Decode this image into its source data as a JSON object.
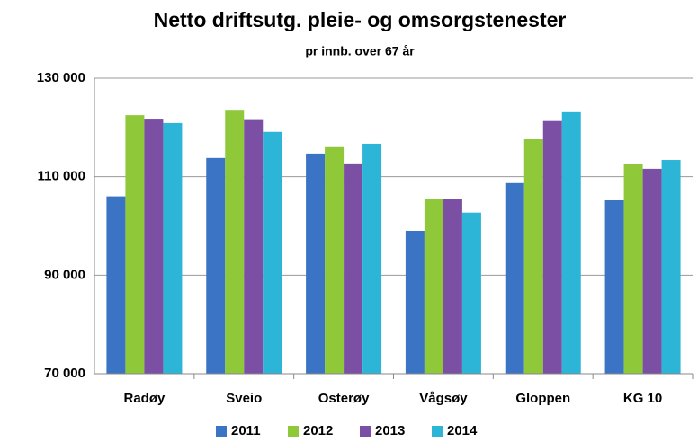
{
  "chart_data": {
    "type": "bar",
    "title": "Netto driftsutg. pleie- og omsorgstenester",
    "subtitle": "pr innb. over 67 år",
    "categories": [
      "Radøy",
      "Sveio",
      "Osterøy",
      "Vågsøy",
      "Gloppen",
      "KG 10"
    ],
    "series": [
      {
        "name": "2011",
        "color": "#3b74c4",
        "values": [
          106000,
          113800,
          114700,
          99000,
          108700,
          105200
        ]
      },
      {
        "name": "2012",
        "color": "#8fc93a",
        "values": [
          122500,
          123400,
          116000,
          105400,
          117600,
          112500
        ]
      },
      {
        "name": "2013",
        "color": "#7b4fa3",
        "values": [
          121600,
          121500,
          112700,
          105400,
          121300,
          111600
        ]
      },
      {
        "name": "2014",
        "color": "#2cb5d6",
        "values": [
          120900,
          119100,
          116700,
          102700,
          123100,
          113400
        ]
      }
    ],
    "ylim": [
      70000,
      130000
    ],
    "yticks": [
      {
        "value": 70000,
        "label": "70 000"
      },
      {
        "value": 90000,
        "label": "90 000"
      },
      {
        "value": 110000,
        "label": "110 000"
      },
      {
        "value": 130000,
        "label": "130 000"
      }
    ],
    "grid": true,
    "legend": "bottom"
  }
}
